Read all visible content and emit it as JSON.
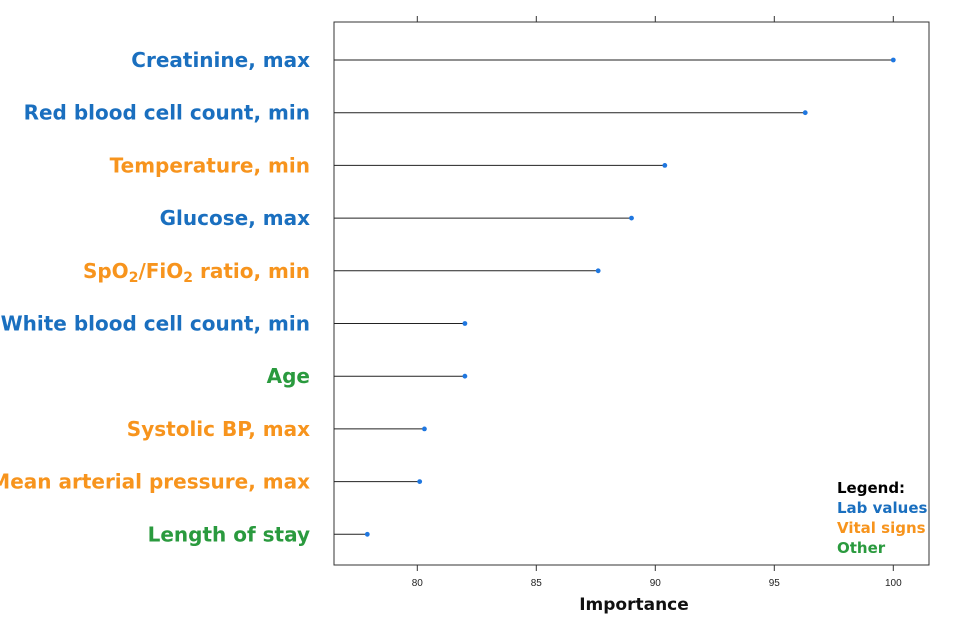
{
  "chart_data": {
    "type": "lollipop",
    "xlabel": "Importance",
    "xlim": [
      76.5,
      101.5
    ],
    "x_ticks": [
      80,
      85,
      90,
      95,
      100
    ],
    "x_tick_labels": [
      "80",
      "85",
      "90",
      "95",
      "100"
    ],
    "grid": false,
    "legend_position": "bottom-right",
    "categories": [
      {
        "label": "Creatinine, max",
        "value": 100.0,
        "group": "lab"
      },
      {
        "label": "Red blood cell count, min",
        "value": 96.3,
        "group": "lab"
      },
      {
        "label": "Temperature, min",
        "value": 90.4,
        "group": "vital"
      },
      {
        "label": "Glucose, max",
        "value": 89.0,
        "group": "lab"
      },
      {
        "label": "SpO2/FiO2 ratio, min",
        "value": 87.6,
        "group": "vital"
      },
      {
        "label": "White blood cell count, min",
        "value": 82.0,
        "group": "lab"
      },
      {
        "label": "Age",
        "value": 82.0,
        "group": "other"
      },
      {
        "label": "Systolic BP, max",
        "value": 80.3,
        "group": "vital"
      },
      {
        "label": "Mean arterial pressure, max",
        "value": 80.1,
        "group": "vital"
      },
      {
        "label": "Length of stay",
        "value": 77.9,
        "group": "other"
      }
    ],
    "legend": {
      "title": "Legend:",
      "items": [
        {
          "label": "Lab values",
          "group": "lab"
        },
        {
          "label": "Vital signs",
          "group": "vital"
        },
        {
          "label": "Other",
          "group": "other"
        }
      ]
    },
    "colors": {
      "lab": "#1a6fbf",
      "vital": "#f7941d",
      "other": "#2a9a3e",
      "point": "#1f77e0",
      "stem": "#222222",
      "axis": "#333333",
      "legend_title": "#000000"
    }
  }
}
